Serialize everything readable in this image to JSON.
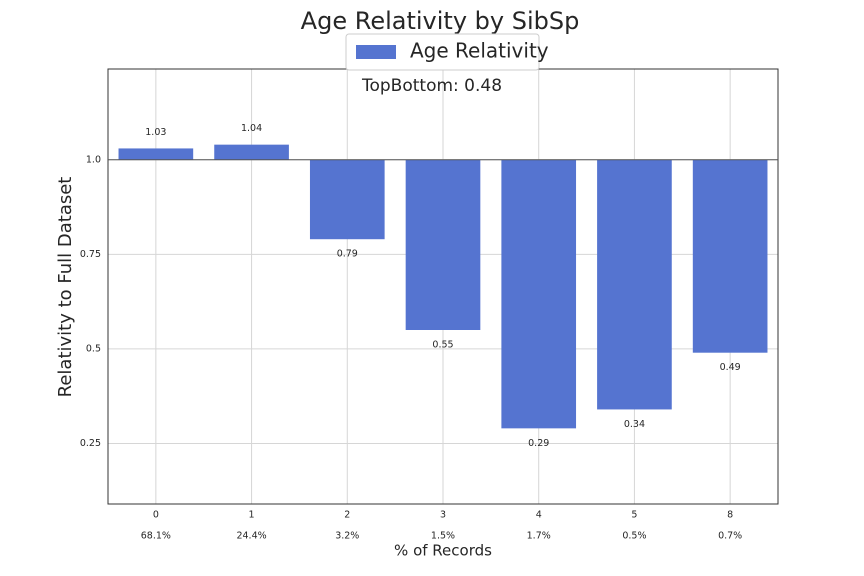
{
  "chart_data": {
    "type": "bar",
    "title": "Age Relativity by SibSp",
    "xlabel": "% of Records",
    "ylabel": "Relativity to Full Dataset",
    "categories": [
      "0",
      "1",
      "2",
      "3",
      "4",
      "5",
      "8"
    ],
    "record_pct": [
      "68.1%",
      "24.4%",
      "3.2%",
      "1.5%",
      "1.7%",
      "0.5%",
      "0.7%"
    ],
    "series": [
      {
        "name": "Age Relativity",
        "values": [
          1.03,
          1.04,
          0.79,
          0.55,
          0.29,
          0.34,
          0.49
        ],
        "color": "#5574d0"
      }
    ],
    "data_labels": [
      "1.03",
      "1.04",
      "0.79",
      "0.55",
      "0.29",
      "0.34",
      "0.49"
    ],
    "baseline": 1.0,
    "ylim": [
      0.09,
      1.24
    ],
    "yticks": [
      0.25,
      0.5,
      0.75,
      1.0
    ],
    "ytick_labels": [
      "0.25",
      "0.5",
      "0.75",
      "1.0"
    ],
    "grid": true,
    "legend_position": "top-center",
    "annotation": "TopBottom: 0.48"
  }
}
